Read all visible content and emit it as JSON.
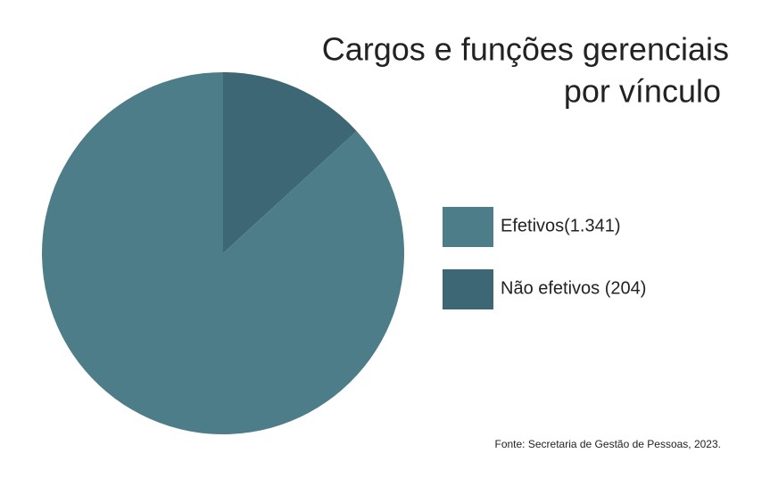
{
  "chart_data": {
    "type": "pie",
    "title": [
      "Cargos e funções gerenciais",
      "por vínculo"
    ],
    "categories": [
      "Efetivos(1.341)",
      "Não efetivos (204)"
    ],
    "values": [
      1341,
      204
    ],
    "colors": [
      "#4e7d8a",
      "#3e6775"
    ],
    "source": "Fonte:  Secretaria de Gestão de Pessoas, 2023."
  }
}
